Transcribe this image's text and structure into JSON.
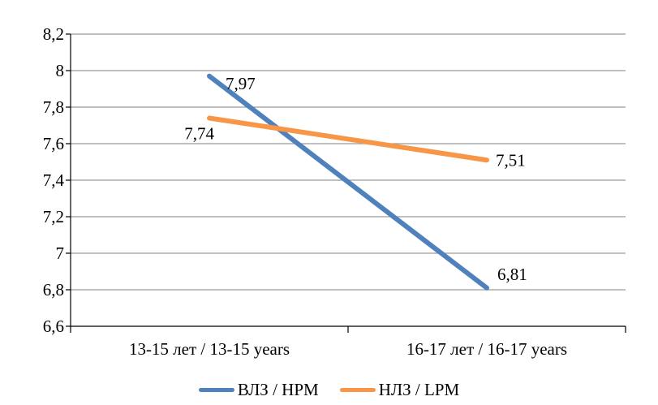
{
  "chart_data": {
    "type": "line",
    "title": "",
    "xlabel": "",
    "ylabel": "",
    "categories": [
      "13-15 лет / 13-15 years",
      "16-17 лет / 16-17 years"
    ],
    "series": [
      {
        "name": "ВЛЗ / HPM",
        "color": "#4F81BD",
        "values": [
          7.97,
          6.81
        ],
        "point_labels": [
          "7,97",
          "6,81"
        ]
      },
      {
        "name": "НЛЗ / LPM",
        "color": "#F79646",
        "values": [
          7.74,
          7.51
        ],
        "point_labels": [
          "7,74",
          "7,51"
        ]
      }
    ],
    "ylim": [
      6.6,
      8.2
    ],
    "ytick_step": 0.2,
    "ytick_labels": [
      "6,6",
      "6,8",
      "7",
      "7,2",
      "7,4",
      "7,6",
      "7,8",
      "8",
      "8,2"
    ],
    "grid": true,
    "legend_position": "bottom",
    "colors": {
      "gridline": "#9A9A9A",
      "axis": "#000000",
      "text": "#000000",
      "background": "#FFFFFF"
    }
  }
}
